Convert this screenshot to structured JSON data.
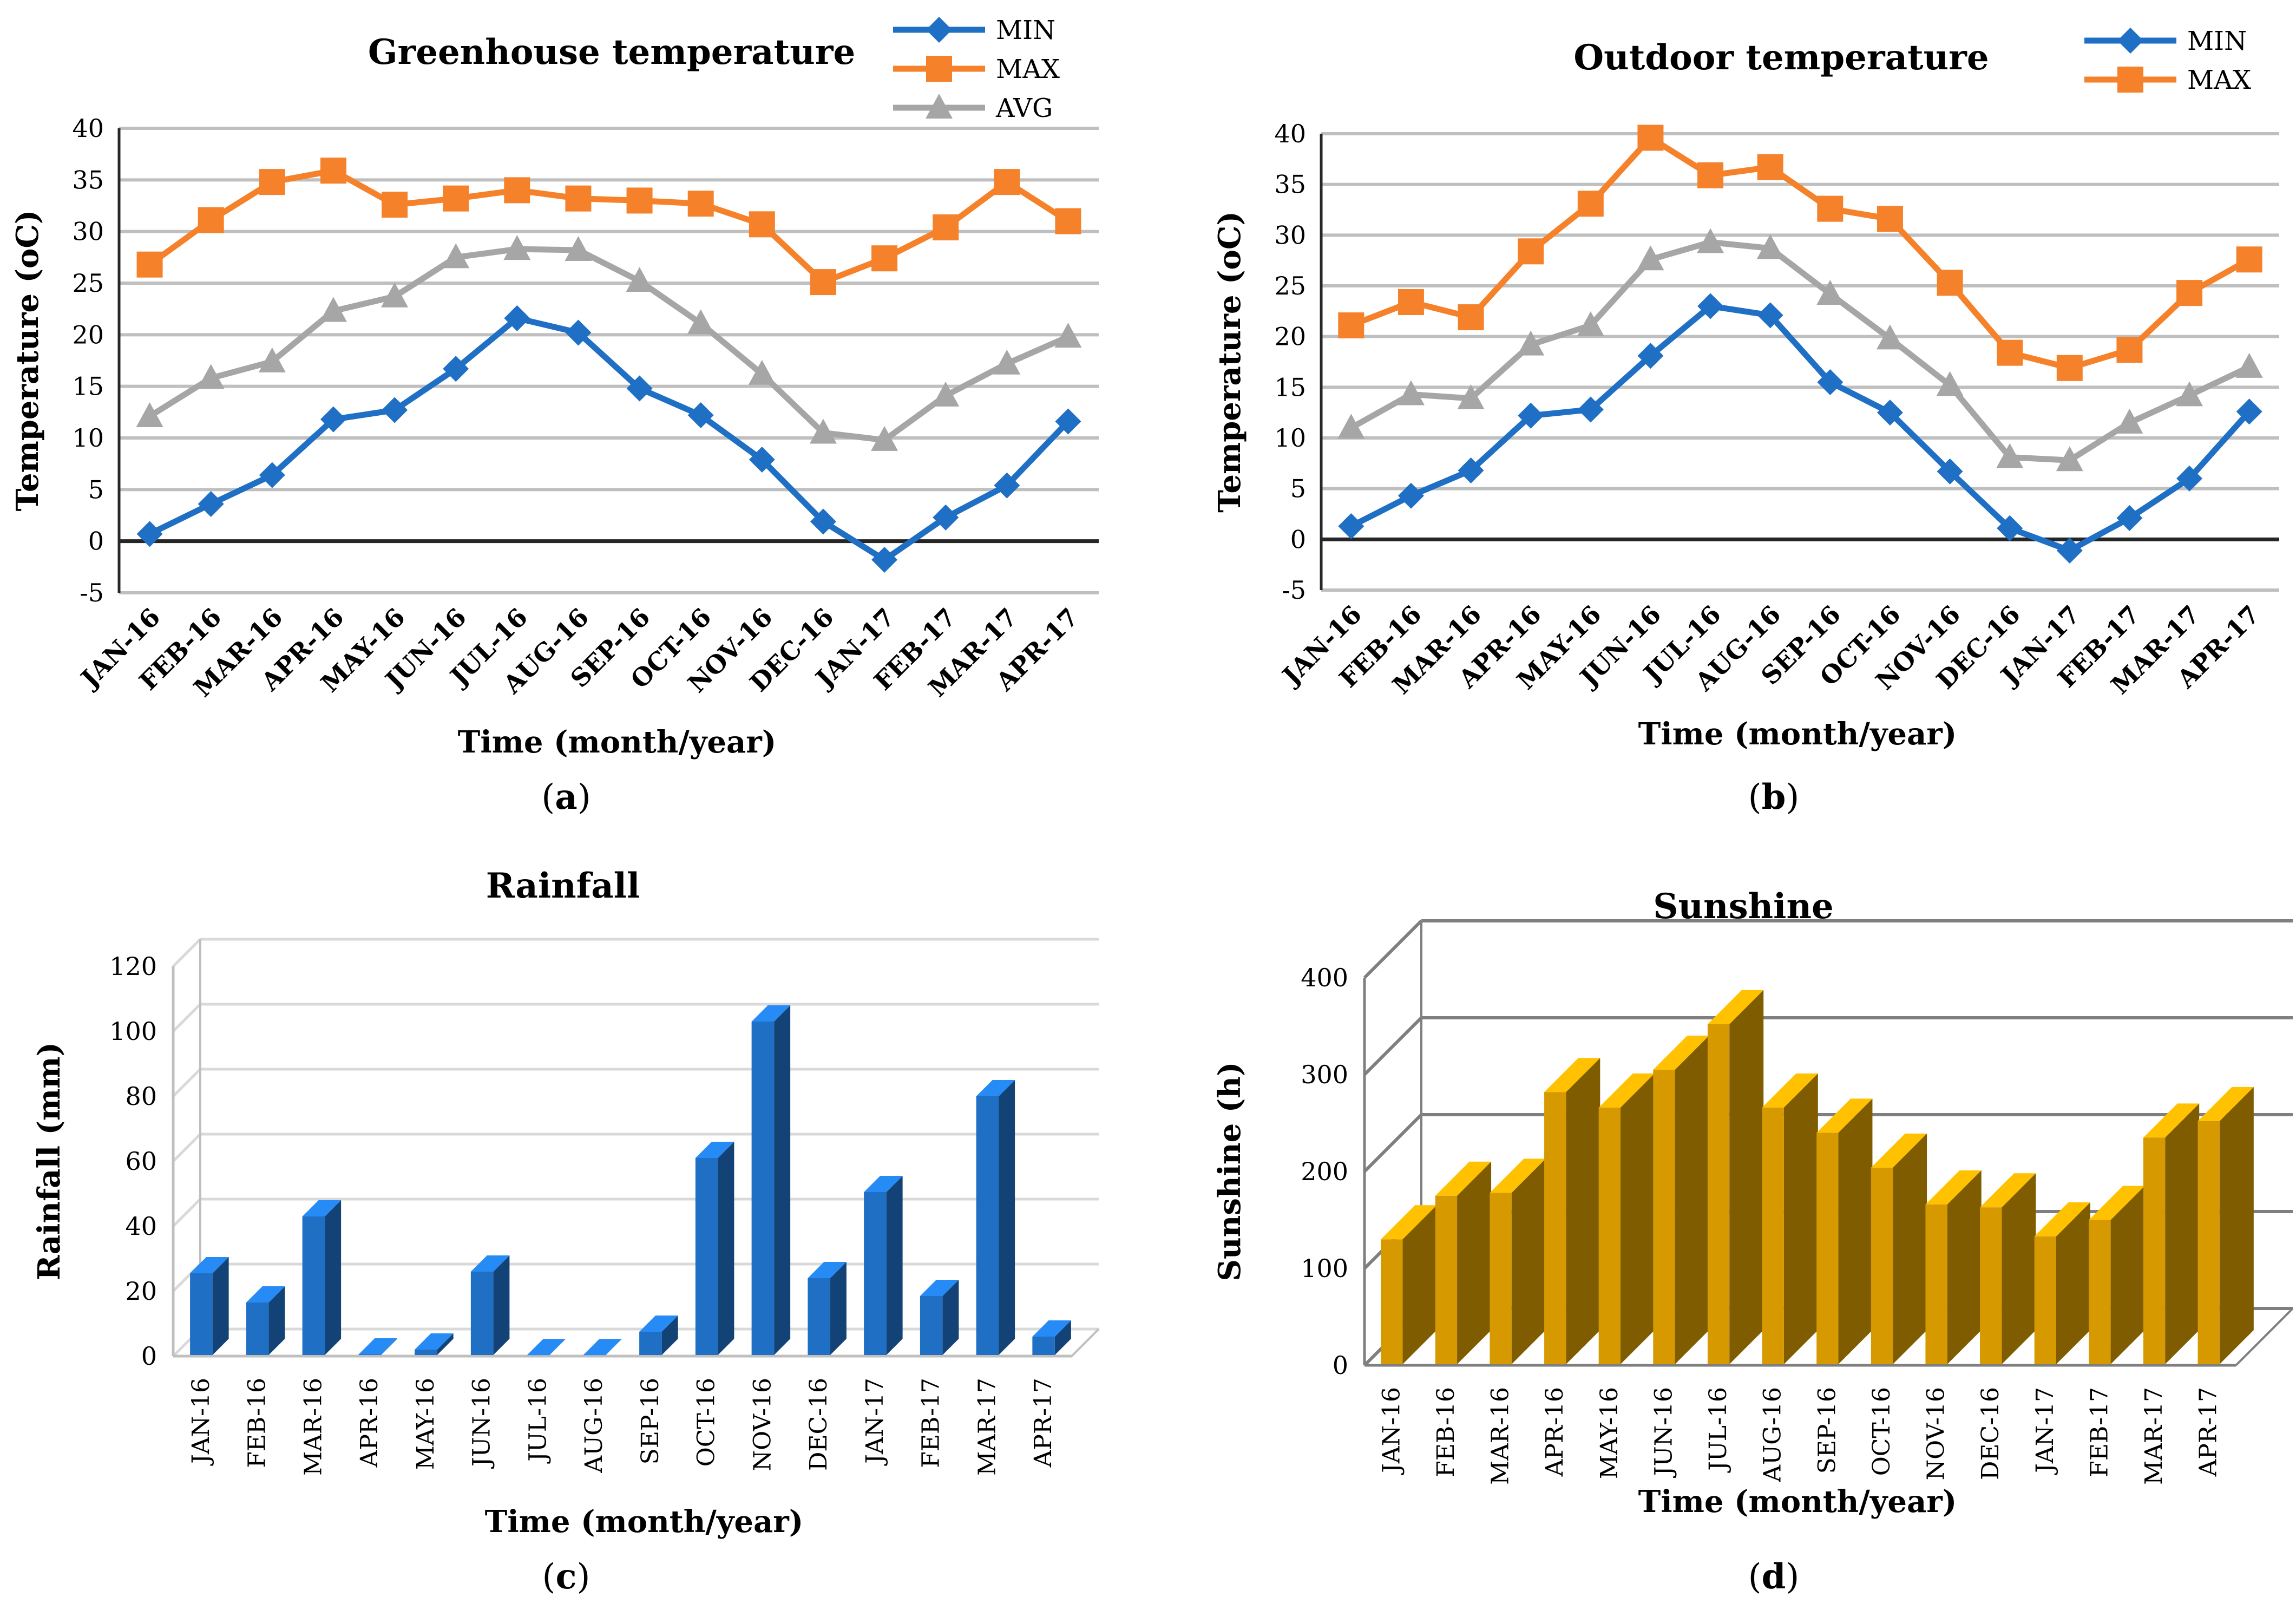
{
  "months": [
    "JAN-16",
    "FEB-16",
    "MAR-16",
    "APR-16",
    "MAY-16",
    "JUN-16",
    "JUL-16",
    "AUG-16",
    "SEP-16",
    "OCT-16",
    "NOV-16",
    "DEC-16",
    "JAN-17",
    "FEB-17",
    "MAR-17",
    "APR-17"
  ],
  "colors": {
    "min": "#1f6fc5",
    "max": "#f5822a",
    "avg": "#a6a6a6",
    "rain": "#1f6fc5",
    "sun": "#d69a00",
    "grid": "#bfbfbf",
    "zero": "#262626"
  },
  "chart_data": [
    {
      "id": "a",
      "type": "line",
      "title": "Greenhouse temperature",
      "caption_letter": "a",
      "xlabel": "Time (month/year)",
      "ylabel": "Temperature (oC)",
      "ylim": [
        -5,
        40
      ],
      "yticks": [
        -5,
        0,
        5,
        10,
        15,
        20,
        25,
        30,
        35,
        40
      ],
      "legend_position": "top-right",
      "series": [
        {
          "name": "MIN",
          "marker": "diamond",
          "values": [
            0.7,
            3.6,
            6.4,
            11.8,
            12.7,
            16.7,
            21.6,
            20.2,
            14.8,
            12.2,
            7.9,
            1.9,
            -1.8,
            2.3,
            5.4,
            11.6
          ]
        },
        {
          "name": "MAX",
          "marker": "square",
          "values": [
            26.8,
            31.1,
            34.8,
            35.9,
            32.6,
            33.2,
            34.0,
            33.2,
            33.0,
            32.7,
            30.7,
            25.1,
            27.4,
            30.4,
            34.8,
            31.0
          ]
        },
        {
          "name": "AVG",
          "marker": "triangle",
          "values": [
            12.1,
            15.8,
            17.4,
            22.3,
            23.7,
            27.5,
            28.3,
            28.2,
            25.2,
            21.1,
            16.2,
            10.5,
            9.8,
            14.1,
            17.2,
            19.8
          ]
        }
      ]
    },
    {
      "id": "b",
      "type": "line",
      "title": "Outdoor temperature",
      "caption_letter": "b",
      "xlabel": "Time (month/year)",
      "ylabel": "Temperature (oC)",
      "ylim": [
        -5,
        40
      ],
      "yticks": [
        -5,
        0,
        5,
        10,
        15,
        20,
        25,
        30,
        35,
        40
      ],
      "legend_position": "top-right",
      "series": [
        {
          "name": "MIN",
          "marker": "diamond",
          "values": [
            1.3,
            4.3,
            6.8,
            12.2,
            12.8,
            18.1,
            23.0,
            22.1,
            15.5,
            12.5,
            6.7,
            1.1,
            -1.1,
            2.1,
            6.0,
            12.6
          ]
        },
        {
          "name": "MAX",
          "marker": "square",
          "values": [
            21.1,
            23.4,
            21.9,
            28.4,
            33.1,
            39.6,
            35.9,
            36.7,
            32.6,
            31.6,
            25.3,
            18.4,
            16.9,
            18.7,
            24.3,
            27.6
          ]
        },
        {
          "name": "AVG",
          "marker": "triangle",
          "legend": false,
          "values": [
            11.0,
            14.3,
            13.9,
            19.2,
            21.1,
            27.6,
            29.3,
            28.7,
            24.2,
            19.8,
            15.2,
            8.1,
            7.8,
            11.5,
            14.2,
            17.0
          ]
        }
      ]
    },
    {
      "id": "c",
      "type": "bar",
      "title": "Rainfall",
      "caption_letter": "c",
      "xlabel": "Time (month/year)",
      "ylabel": "Rainfall (mm)",
      "ylim": [
        0,
        120
      ],
      "yticks": [
        0,
        20,
        40,
        60,
        80,
        100,
        120
      ],
      "values": [
        25.5,
        16.5,
        43.0,
        0.5,
        2.0,
        26.0,
        0.3,
        0.3,
        7.5,
        61.0,
        103.0,
        24.0,
        50.5,
        18.5,
        80.0,
        6.0
      ]
    },
    {
      "id": "d",
      "type": "bar",
      "title": "Sunshine",
      "caption_letter": "d",
      "xlabel": "Time (month/year)",
      "ylabel": "Sunshine (h)",
      "ylim": [
        0,
        400
      ],
      "yticks": [
        0,
        100,
        200,
        300,
        400
      ],
      "values": [
        130,
        175,
        178,
        282,
        266,
        305,
        352,
        266,
        240,
        204,
        166,
        163,
        133,
        150,
        235,
        252
      ]
    }
  ]
}
